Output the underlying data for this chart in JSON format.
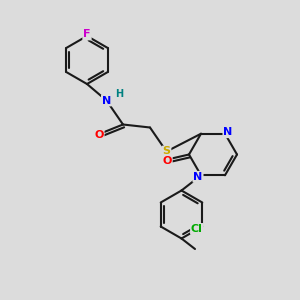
{
  "bg_color": "#dcdcdc",
  "bond_color": "#1a1a1a",
  "atom_colors": {
    "F": "#cc00cc",
    "N": "#0000ff",
    "O": "#ff0000",
    "S": "#ccaa00",
    "Cl": "#00aa00",
    "H": "#008080",
    "C": "#1a1a1a"
  },
  "lw": 1.5,
  "fs": 7.5
}
